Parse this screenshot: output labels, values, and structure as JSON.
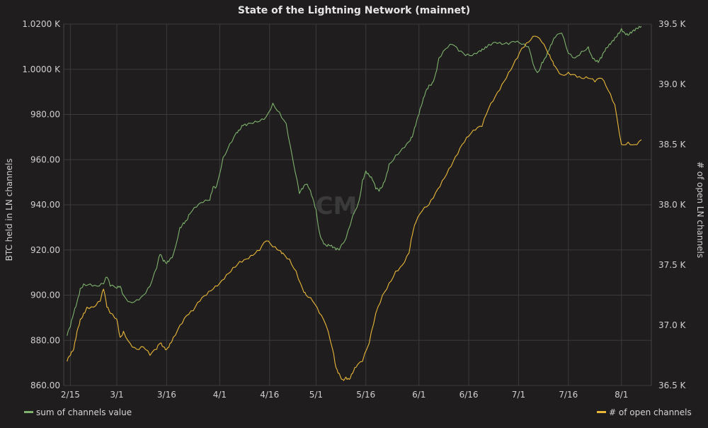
{
  "chart_data": {
    "type": "line",
    "title": "State of the Lightning Network (mainnet)",
    "ylabel_left": "BTC held in LN channels",
    "ylabel_right": "# of open LN channels",
    "x_ticks": [
      "2/15",
      "3/1",
      "3/16",
      "4/1",
      "4/16",
      "5/1",
      "5/16",
      "6/1",
      "6/16",
      "7/1",
      "7/16",
      "8/1"
    ],
    "x_tick_days": [
      0,
      14,
      29,
      45,
      60,
      74,
      89,
      105,
      120,
      135,
      150,
      166
    ],
    "x_range_days": [
      -2,
      175
    ],
    "y_left": {
      "ylim": [
        860,
        1020
      ],
      "ticks": [
        860,
        880,
        900,
        920,
        940,
        960,
        980,
        1000,
        1020
      ],
      "tick_labels": [
        "860.00",
        "880.00",
        "900.00",
        "920.00",
        "940.00",
        "960.00",
        "980.00",
        "1.0000 K",
        "1.0200 K"
      ]
    },
    "y_right": {
      "ylim": [
        36500,
        39500
      ],
      "ticks": [
        36500,
        37000,
        37500,
        38000,
        38500,
        39000,
        39500
      ],
      "tick_labels": [
        "36.5 K",
        "37.0 K",
        "37.5 K",
        "38.0 K",
        "38.5 K",
        "39.0 K",
        "39.5 K"
      ]
    },
    "grid": true,
    "series": [
      {
        "name": "sum of channels value",
        "axis": "left",
        "color": "#7eb26d",
        "x": [
          -1,
          0,
          1,
          2,
          3,
          4,
          6,
          8,
          10,
          11,
          12,
          14,
          15,
          16,
          18,
          20,
          22,
          24,
          26,
          27,
          28,
          29,
          30,
          31,
          33,
          34,
          35,
          36,
          38,
          40,
          42,
          43,
          44,
          46,
          48,
          50,
          51,
          52,
          53,
          55,
          57,
          59,
          61,
          63,
          65,
          67,
          69,
          70,
          71,
          72,
          73,
          74,
          75,
          76,
          77,
          78,
          79,
          80,
          81,
          83,
          85,
          87,
          88,
          89,
          90,
          91,
          92,
          93,
          94,
          95,
          96,
          98,
          100,
          102,
          103,
          104,
          105,
          106,
          107,
          108,
          109,
          110,
          111,
          113,
          115,
          117,
          119,
          121,
          123,
          124,
          125,
          126,
          128,
          130,
          132,
          134,
          136,
          138,
          140,
          141,
          142,
          143,
          144,
          145,
          146,
          148,
          150,
          152,
          154,
          156,
          157,
          158,
          159,
          160,
          161,
          162,
          163,
          164,
          165,
          166,
          167,
          168,
          169,
          170,
          171,
          172
        ],
        "y": [
          882,
          886,
          892,
          897,
          903,
          905,
          905,
          904,
          905,
          908,
          904,
          903,
          904,
          900,
          897,
          898,
          900,
          904,
          912,
          918,
          915,
          914,
          916,
          918,
          930,
          932,
          933,
          936,
          939,
          941,
          942,
          948,
          948,
          961,
          967,
          972,
          973,
          975,
          975,
          976,
          977,
          979,
          985,
          981,
          976,
          960,
          945,
          947,
          949,
          947,
          943,
          938,
          928,
          924,
          922,
          922,
          921,
          920,
          920,
          925,
          935,
          942,
          951,
          955,
          953,
          951,
          947,
          946,
          948,
          952,
          958,
          962,
          965,
          968,
          970,
          975,
          980,
          985,
          990,
          993,
          994,
          998,
          1005,
          1009,
          1011,
          1008,
          1006,
          1006,
          1008,
          1009,
          1010,
          1011,
          1012,
          1011,
          1011,
          1012,
          1011,
          1010,
          1000,
          999,
          1003,
          1005,
          1008,
          1011,
          1014,
          1016,
          1007,
          1005,
          1008,
          1010,
          1006,
          1004,
          1003,
          1005,
          1008,
          1010,
          1012,
          1014,
          1016,
          1018,
          1016,
          1015,
          1016,
          1017,
          1018,
          1019
        ]
      },
      {
        "name": "# of open channels",
        "axis": "right",
        "color": "#eab839",
        "x": [
          -1,
          0,
          1,
          2,
          3,
          4,
          5,
          7,
          9,
          10,
          11,
          12,
          14,
          15,
          16,
          18,
          20,
          22,
          24,
          26,
          27,
          28,
          29,
          30,
          31,
          33,
          35,
          37,
          39,
          41,
          43,
          45,
          47,
          49,
          51,
          53,
          55,
          57,
          59,
          61,
          63,
          64,
          66,
          68,
          70,
          71,
          73,
          75,
          77,
          79,
          80,
          81,
          82,
          83,
          84,
          85,
          86,
          88,
          90,
          92,
          94,
          96,
          98,
          100,
          102,
          103,
          104,
          106,
          108,
          110,
          112,
          114,
          116,
          118,
          120,
          122,
          124,
          126,
          128,
          130,
          132,
          134,
          136,
          138,
          140,
          142,
          144,
          145,
          146,
          148,
          150,
          152,
          154,
          156,
          158,
          160,
          162,
          164,
          166,
          168,
          170,
          172
        ],
        "y": [
          36700,
          36750,
          36800,
          36950,
          37050,
          37100,
          37150,
          37150,
          37200,
          37300,
          37150,
          37100,
          37050,
          36900,
          36950,
          36850,
          36800,
          36820,
          36750,
          36800,
          36850,
          36820,
          36800,
          36850,
          36900,
          37000,
          37080,
          37120,
          37200,
          37250,
          37300,
          37350,
          37420,
          37480,
          37530,
          37550,
          37580,
          37620,
          37700,
          37650,
          37620,
          37600,
          37550,
          37450,
          37300,
          37250,
          37200,
          37100,
          37000,
          36800,
          36650,
          36600,
          36550,
          36570,
          36550,
          36600,
          36650,
          36700,
          36850,
          37100,
          37250,
          37350,
          37450,
          37500,
          37600,
          37750,
          37850,
          37950,
          38000,
          38100,
          38200,
          38300,
          38400,
          38500,
          38570,
          38620,
          38650,
          38800,
          38900,
          39000,
          39100,
          39200,
          39300,
          39350,
          39400,
          39350,
          39250,
          39200,
          39150,
          39080,
          39100,
          39080,
          39050,
          39050,
          39020,
          39050,
          38950,
          38830,
          38500,
          38520,
          38500,
          38540
        ]
      }
    ],
    "legend": {
      "left": "sum of channels value",
      "right": "# of open channels"
    },
    "watermark": "CM"
  }
}
